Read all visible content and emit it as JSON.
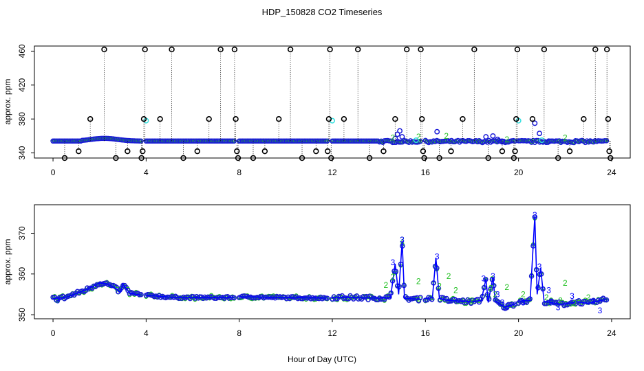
{
  "figure": {
    "title": "HDP_150828  CO2 Timeseries",
    "xlabel": "Hour of Day (UTC)"
  },
  "colors": {
    "black_points": "#000000",
    "blue_points": "#1a1ad8",
    "cyan_points": "#33e0e0",
    "green_points": "#22c022",
    "blue_line": "#0000ff"
  },
  "chart_data": [
    {
      "type": "scatter",
      "panel": "top",
      "ylabel": "approx. ppm",
      "xlim": [
        -0.8,
        24.8
      ],
      "ylim": [
        334,
        466
      ],
      "xticks": [
        0,
        4,
        8,
        12,
        16,
        20,
        24
      ],
      "yticks": [
        340,
        380,
        420,
        460
      ],
      "grid": false,
      "series": [
        {
          "marker": "black circles with dotted drop lines",
          "spike_base": 354,
          "points": [
            [
              0.5,
              334
            ],
            [
              1.1,
              342
            ],
            [
              1.6,
              380
            ],
            [
              2.2,
              462
            ],
            [
              2.7,
              334
            ],
            [
              3.2,
              342
            ],
            [
              3.8,
              334
            ],
            [
              3.85,
              342
            ],
            [
              3.9,
              380
            ],
            [
              3.95,
              462
            ],
            [
              4.6,
              380
            ],
            [
              5.1,
              462
            ],
            [
              5.6,
              334
            ],
            [
              6.2,
              342
            ],
            [
              6.7,
              380
            ],
            [
              7.2,
              462
            ],
            [
              7.8,
              462
            ],
            [
              7.85,
              380
            ],
            [
              7.9,
              342
            ],
            [
              7.95,
              334
            ],
            [
              8.6,
              334
            ],
            [
              9.1,
              342
            ],
            [
              9.7,
              380
            ],
            [
              10.2,
              462
            ],
            [
              10.7,
              334
            ],
            [
              11.3,
              342
            ],
            [
              11.8,
              342
            ],
            [
              11.85,
              380
            ],
            [
              11.9,
              462
            ],
            [
              11.95,
              334
            ],
            [
              12.5,
              380
            ],
            [
              13.1,
              462
            ],
            [
              13.6,
              334
            ],
            [
              14.2,
              342
            ],
            [
              14.7,
              380
            ],
            [
              15.2,
              462
            ],
            [
              15.8,
              462
            ],
            [
              15.85,
              380
            ],
            [
              15.9,
              342
            ],
            [
              15.95,
              334
            ],
            [
              16.6,
              334
            ],
            [
              17.1,
              342
            ],
            [
              17.6,
              380
            ],
            [
              18.1,
              462
            ],
            [
              18.7,
              334
            ],
            [
              19.3,
              342
            ],
            [
              19.8,
              334
            ],
            [
              19.85,
              342
            ],
            [
              19.9,
              380
            ],
            [
              19.95,
              462
            ],
            [
              20.6,
              380
            ],
            [
              21.1,
              462
            ],
            [
              21.7,
              334
            ],
            [
              22.2,
              342
            ],
            [
              22.8,
              380
            ],
            [
              23.3,
              462
            ],
            [
              23.8,
              462
            ],
            [
              23.85,
              380
            ],
            [
              23.9,
              342
            ],
            [
              23.95,
              334
            ]
          ]
        },
        {
          "marker": "cyan circles",
          "points": [
            [
              4.0,
              378
            ],
            [
              12.0,
              378
            ],
            [
              15.6,
              355
            ],
            [
              20.0,
              378
            ],
            [
              21.0,
              355
            ]
          ]
        },
        {
          "marker": "blue circles (dense timeseries, gaps at 4, 8, 12, 16, 20)",
          "points": [
            [
              14.7,
              357
            ],
            [
              14.8,
              362
            ],
            [
              14.9,
              366
            ],
            [
              15.0,
              359
            ],
            [
              16.5,
              365
            ],
            [
              18.6,
              359
            ],
            [
              18.9,
              360
            ],
            [
              19.1,
              356
            ],
            [
              19.3,
              353
            ],
            [
              20.7,
              375
            ],
            [
              20.9,
              363
            ],
            [
              21.3,
              354
            ]
          ]
        },
        {
          "marker": "green digits 2",
          "points": [
            [
              14.6,
              358
            ],
            [
              15.7,
              359
            ],
            [
              16.9,
              360
            ],
            [
              19.5,
              356
            ],
            [
              22.0,
              358
            ]
          ]
        }
      ]
    },
    {
      "type": "line",
      "panel": "bottom",
      "ylabel": "approx. ppm",
      "xlim": [
        -0.8,
        24.8
      ],
      "ylim": [
        349,
        377
      ],
      "xticks": [
        0,
        4,
        8,
        12,
        16,
        20,
        24
      ],
      "yticks": [
        350,
        360,
        370
      ],
      "grid": false,
      "series": [
        {
          "marker": "blue line with circles and digit 3 labels",
          "baseline_segments": [
            {
              "x": [
                0.0,
                3.8
              ],
              "shape": "bump",
              "values": [
                [
                  0.0,
                  354
                ],
                [
                  0.5,
                  354.2
                ],
                [
                  1.0,
                  355.2
                ],
                [
                  1.5,
                  356.3
                ],
                [
                  2.0,
                  357.8
                ],
                [
                  2.3,
                  357.6
                ],
                [
                  2.6,
                  356.8
                ],
                [
                  2.9,
                  355.6
                ],
                [
                  3.0,
                  357.5
                ],
                [
                  3.3,
                  355.3
                ],
                [
                  3.8,
                  354.8
                ]
              ]
            },
            {
              "x": [
                4.0,
                7.8
              ],
              "shape": "flat",
              "values": [
                [
                  4.0,
                  354.8
                ],
                [
                  5.0,
                  354.3
                ],
                [
                  6.0,
                  354.2
                ],
                [
                  7.8,
                  354.2
                ]
              ]
            },
            {
              "x": [
                8.0,
                11.8
              ],
              "shape": "flat",
              "values": [
                [
                  8.0,
                  354.4
                ],
                [
                  10.0,
                  354.2
                ],
                [
                  11.8,
                  354.1
                ]
              ]
            },
            {
              "x": [
                12.0,
                15.8
              ],
              "shape": "spiky",
              "values": [
                [
                  12.0,
                  354.3
                ],
                [
                  14.0,
                  354.1
                ],
                [
                  14.5,
                  354.2
                ],
                [
                  14.7,
                  362.5
                ],
                [
                  14.85,
                  355
                ],
                [
                  15.0,
                  368.1
                ],
                [
                  15.1,
                  354
                ],
                [
                  15.8,
                  353.8
                ]
              ]
            },
            {
              "x": [
                16.0,
                19.9
              ],
              "shape": "spiky",
              "values": [
                [
                  16.0,
                  354
                ],
                [
                  16.3,
                  354.2
                ],
                [
                  16.45,
                  364
                ],
                [
                  16.6,
                  354
                ],
                [
                  17.0,
                  353.5
                ],
                [
                  18.0,
                  353.2
                ],
                [
                  18.4,
                  353.5
                ],
                [
                  18.6,
                  358.8
                ],
                [
                  18.7,
                  353
                ],
                [
                  18.9,
                  359.2
                ],
                [
                  19.0,
                  353.5
                ],
                [
                  19.4,
                  351.8
                ],
                [
                  19.9,
                  352.8
                ]
              ]
            },
            {
              "x": [
                20.0,
                23.8
              ],
              "shape": "spiky",
              "values": [
                [
                  20.0,
                  353.3
                ],
                [
                  20.5,
                  353.5
                ],
                [
                  20.7,
                  374.2
                ],
                [
                  20.8,
                  355
                ],
                [
                  20.95,
                  361.5
                ],
                [
                  21.1,
                  353.2
                ],
                [
                  21.6,
                  352.8
                ],
                [
                  22.0,
                  352.6
                ],
                [
                  22.5,
                  353.2
                ],
                [
                  23.0,
                  352.8
                ],
                [
                  23.8,
                  353.8
                ]
              ]
            }
          ],
          "digit_labels": [
            [
              0.2,
              353.5
            ],
            [
              14.6,
              362.8
            ],
            [
              15.0,
              368.4
            ],
            [
              16.5,
              364.3
            ],
            [
              18.5,
              358.9
            ],
            [
              18.9,
              359.5
            ],
            [
              19.1,
              355
            ],
            [
              19.3,
              353
            ],
            [
              19.5,
              352
            ],
            [
              20.2,
              353
            ],
            [
              20.7,
              374.5
            ],
            [
              20.9,
              361.8
            ],
            [
              21.3,
              356
            ],
            [
              21.4,
              353
            ],
            [
              21.7,
              351.8
            ],
            [
              22.3,
              354.6
            ],
            [
              23.2,
              353.1
            ],
            [
              23.5,
              351
            ]
          ]
        },
        {
          "marker": "green digits 2 and circles",
          "digit_labels": [
            [
              14.3,
              357.3
            ],
            [
              14.6,
              359.3
            ],
            [
              15.0,
              368.4
            ],
            [
              15.7,
              358.2
            ],
            [
              16.6,
              357
            ],
            [
              17.0,
              359.5
            ],
            [
              17.3,
              356
            ],
            [
              18.0,
              353.5
            ],
            [
              18.8,
              356.5
            ],
            [
              19.0,
              355
            ],
            [
              19.5,
              356.8
            ],
            [
              20.2,
              355
            ],
            [
              21.2,
              354.2
            ],
            [
              21.8,
              353.5
            ],
            [
              22.0,
              357.8
            ],
            [
              22.4,
              352.8
            ],
            [
              23.0,
              354.2
            ]
          ]
        }
      ]
    }
  ]
}
